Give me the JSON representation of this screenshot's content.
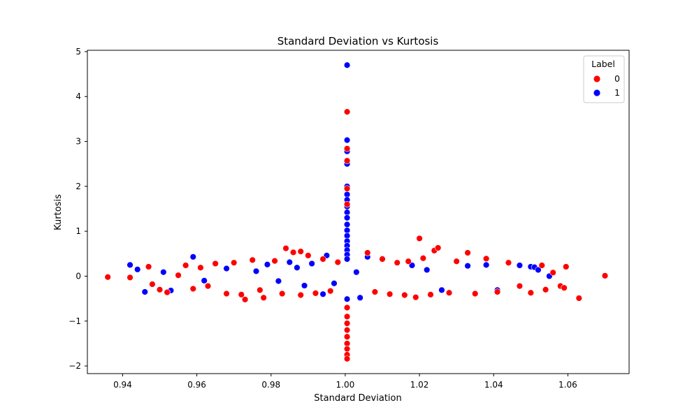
{
  "chart_data": {
    "type": "scatter",
    "title": "Standard Deviation vs Kurtosis",
    "xlabel": "Standard Deviation",
    "ylabel": "Kurtosis",
    "xlim": [
      0.9305,
      1.0765
    ],
    "ylim": [
      -2.17,
      5.03
    ],
    "xticks": [
      0.94,
      0.96,
      0.98,
      1.0,
      1.02,
      1.04,
      1.06
    ],
    "xtick_labels": [
      "0.94",
      "0.96",
      "0.98",
      "1.00",
      "1.02",
      "1.04",
      "1.06"
    ],
    "yticks": [
      -2,
      -1,
      0,
      1,
      2,
      3,
      4,
      5
    ],
    "ytick_labels": [
      "−2",
      "−1",
      "0",
      "1",
      "2",
      "3",
      "4",
      "5"
    ],
    "grid": false,
    "legend": {
      "title": "Label",
      "placement": "top-right"
    },
    "colors": {
      "0": "#ff0000",
      "1": "#0000ff"
    },
    "series": [
      {
        "name": "0",
        "points": [
          [
            0.936,
            -0.02
          ],
          [
            0.942,
            -0.03
          ],
          [
            0.947,
            0.21
          ],
          [
            0.948,
            -0.18
          ],
          [
            0.95,
            -0.3
          ],
          [
            0.952,
            -0.36
          ],
          [
            0.955,
            0.02
          ],
          [
            0.957,
            0.24
          ],
          [
            0.959,
            -0.28
          ],
          [
            0.961,
            0.19
          ],
          [
            0.963,
            -0.22
          ],
          [
            0.965,
            0.28
          ],
          [
            0.968,
            -0.39
          ],
          [
            0.97,
            0.3
          ],
          [
            0.972,
            -0.41
          ],
          [
            0.973,
            -0.52
          ],
          [
            0.975,
            0.36
          ],
          [
            0.977,
            -0.31
          ],
          [
            0.978,
            -0.48
          ],
          [
            0.981,
            0.34
          ],
          [
            0.983,
            -0.39
          ],
          [
            0.984,
            0.62
          ],
          [
            0.986,
            0.53
          ],
          [
            0.988,
            -0.42
          ],
          [
            0.988,
            0.55
          ],
          [
            0.99,
            0.46
          ],
          [
            0.992,
            -0.38
          ],
          [
            0.994,
            0.38
          ],
          [
            0.996,
            -0.33
          ],
          [
            0.998,
            0.31
          ],
          [
            1.006,
            0.52
          ],
          [
            1.008,
            -0.35
          ],
          [
            1.01,
            0.38
          ],
          [
            1.012,
            -0.4
          ],
          [
            1.014,
            0.3
          ],
          [
            1.016,
            -0.42
          ],
          [
            1.017,
            0.33
          ],
          [
            1.019,
            -0.47
          ],
          [
            1.02,
            0.84
          ],
          [
            1.021,
            0.4
          ],
          [
            1.023,
            -0.41
          ],
          [
            1.024,
            0.57
          ],
          [
            1.025,
            0.63
          ],
          [
            1.028,
            -0.37
          ],
          [
            1.03,
            0.33
          ],
          [
            1.033,
            0.52
          ],
          [
            1.035,
            -0.39
          ],
          [
            1.038,
            0.39
          ],
          [
            1.041,
            -0.35
          ],
          [
            1.044,
            0.3
          ],
          [
            1.047,
            -0.22
          ],
          [
            1.05,
            -0.37
          ],
          [
            1.053,
            0.24
          ],
          [
            1.054,
            -0.3
          ],
          [
            1.056,
            0.08
          ],
          [
            1.058,
            -0.22
          ],
          [
            1.059,
            -0.26
          ],
          [
            1.0595,
            0.21
          ],
          [
            1.063,
            -0.49
          ],
          [
            1.07,
            0.01
          ],
          [
            1.0005,
            3.66
          ],
          [
            1.0005,
            2.84
          ],
          [
            1.0005,
            2.57
          ],
          [
            1.0005,
            1.95
          ],
          [
            1.0005,
            1.6
          ],
          [
            1.0005,
            -0.7
          ],
          [
            1.0005,
            -0.9
          ],
          [
            1.0005,
            -1.05
          ],
          [
            1.0005,
            -1.2
          ],
          [
            1.0005,
            -1.35
          ],
          [
            1.0005,
            -1.5
          ],
          [
            1.0005,
            -1.62
          ],
          [
            1.0005,
            -1.75
          ],
          [
            1.0005,
            -1.84
          ]
        ]
      },
      {
        "name": "1",
        "points": [
          [
            0.942,
            0.25
          ],
          [
            0.944,
            0.15
          ],
          [
            0.946,
            -0.35
          ],
          [
            0.951,
            0.09
          ],
          [
            0.953,
            -0.32
          ],
          [
            0.959,
            0.43
          ],
          [
            0.962,
            -0.1
          ],
          [
            0.968,
            0.17
          ],
          [
            0.976,
            0.11
          ],
          [
            0.979,
            0.26
          ],
          [
            0.982,
            -0.11
          ],
          [
            0.985,
            0.31
          ],
          [
            0.987,
            0.19
          ],
          [
            0.989,
            -0.21
          ],
          [
            0.991,
            0.28
          ],
          [
            0.994,
            -0.4
          ],
          [
            0.995,
            0.46
          ],
          [
            0.997,
            -0.16
          ],
          [
            1.003,
            0.09
          ],
          [
            1.004,
            -0.48
          ],
          [
            1.006,
            0.43
          ],
          [
            1.01,
            0.39
          ],
          [
            1.018,
            0.24
          ],
          [
            1.022,
            0.14
          ],
          [
            1.026,
            -0.31
          ],
          [
            1.033,
            0.23
          ],
          [
            1.038,
            0.25
          ],
          [
            1.041,
            -0.31
          ],
          [
            1.047,
            0.24
          ],
          [
            1.05,
            0.21
          ],
          [
            1.051,
            0.2
          ],
          [
            1.052,
            0.14
          ],
          [
            1.055,
            0.0
          ],
          [
            1.0005,
            4.7
          ],
          [
            1.0005,
            3.03
          ],
          [
            1.0005,
            2.78
          ],
          [
            1.0005,
            2.5
          ],
          [
            1.0005,
            2.0
          ],
          [
            1.0005,
            1.82
          ],
          [
            1.0005,
            1.7
          ],
          [
            1.0005,
            1.55
          ],
          [
            1.0005,
            1.42
          ],
          [
            1.0005,
            1.3
          ],
          [
            1.0005,
            1.15
          ],
          [
            1.0005,
            1.02
          ],
          [
            1.0005,
            0.9
          ],
          [
            1.0005,
            0.78
          ],
          [
            1.0005,
            0.68
          ],
          [
            1.0005,
            0.58
          ],
          [
            1.0005,
            0.48
          ],
          [
            1.0005,
            0.38
          ],
          [
            1.0005,
            -0.51
          ]
        ]
      }
    ]
  }
}
